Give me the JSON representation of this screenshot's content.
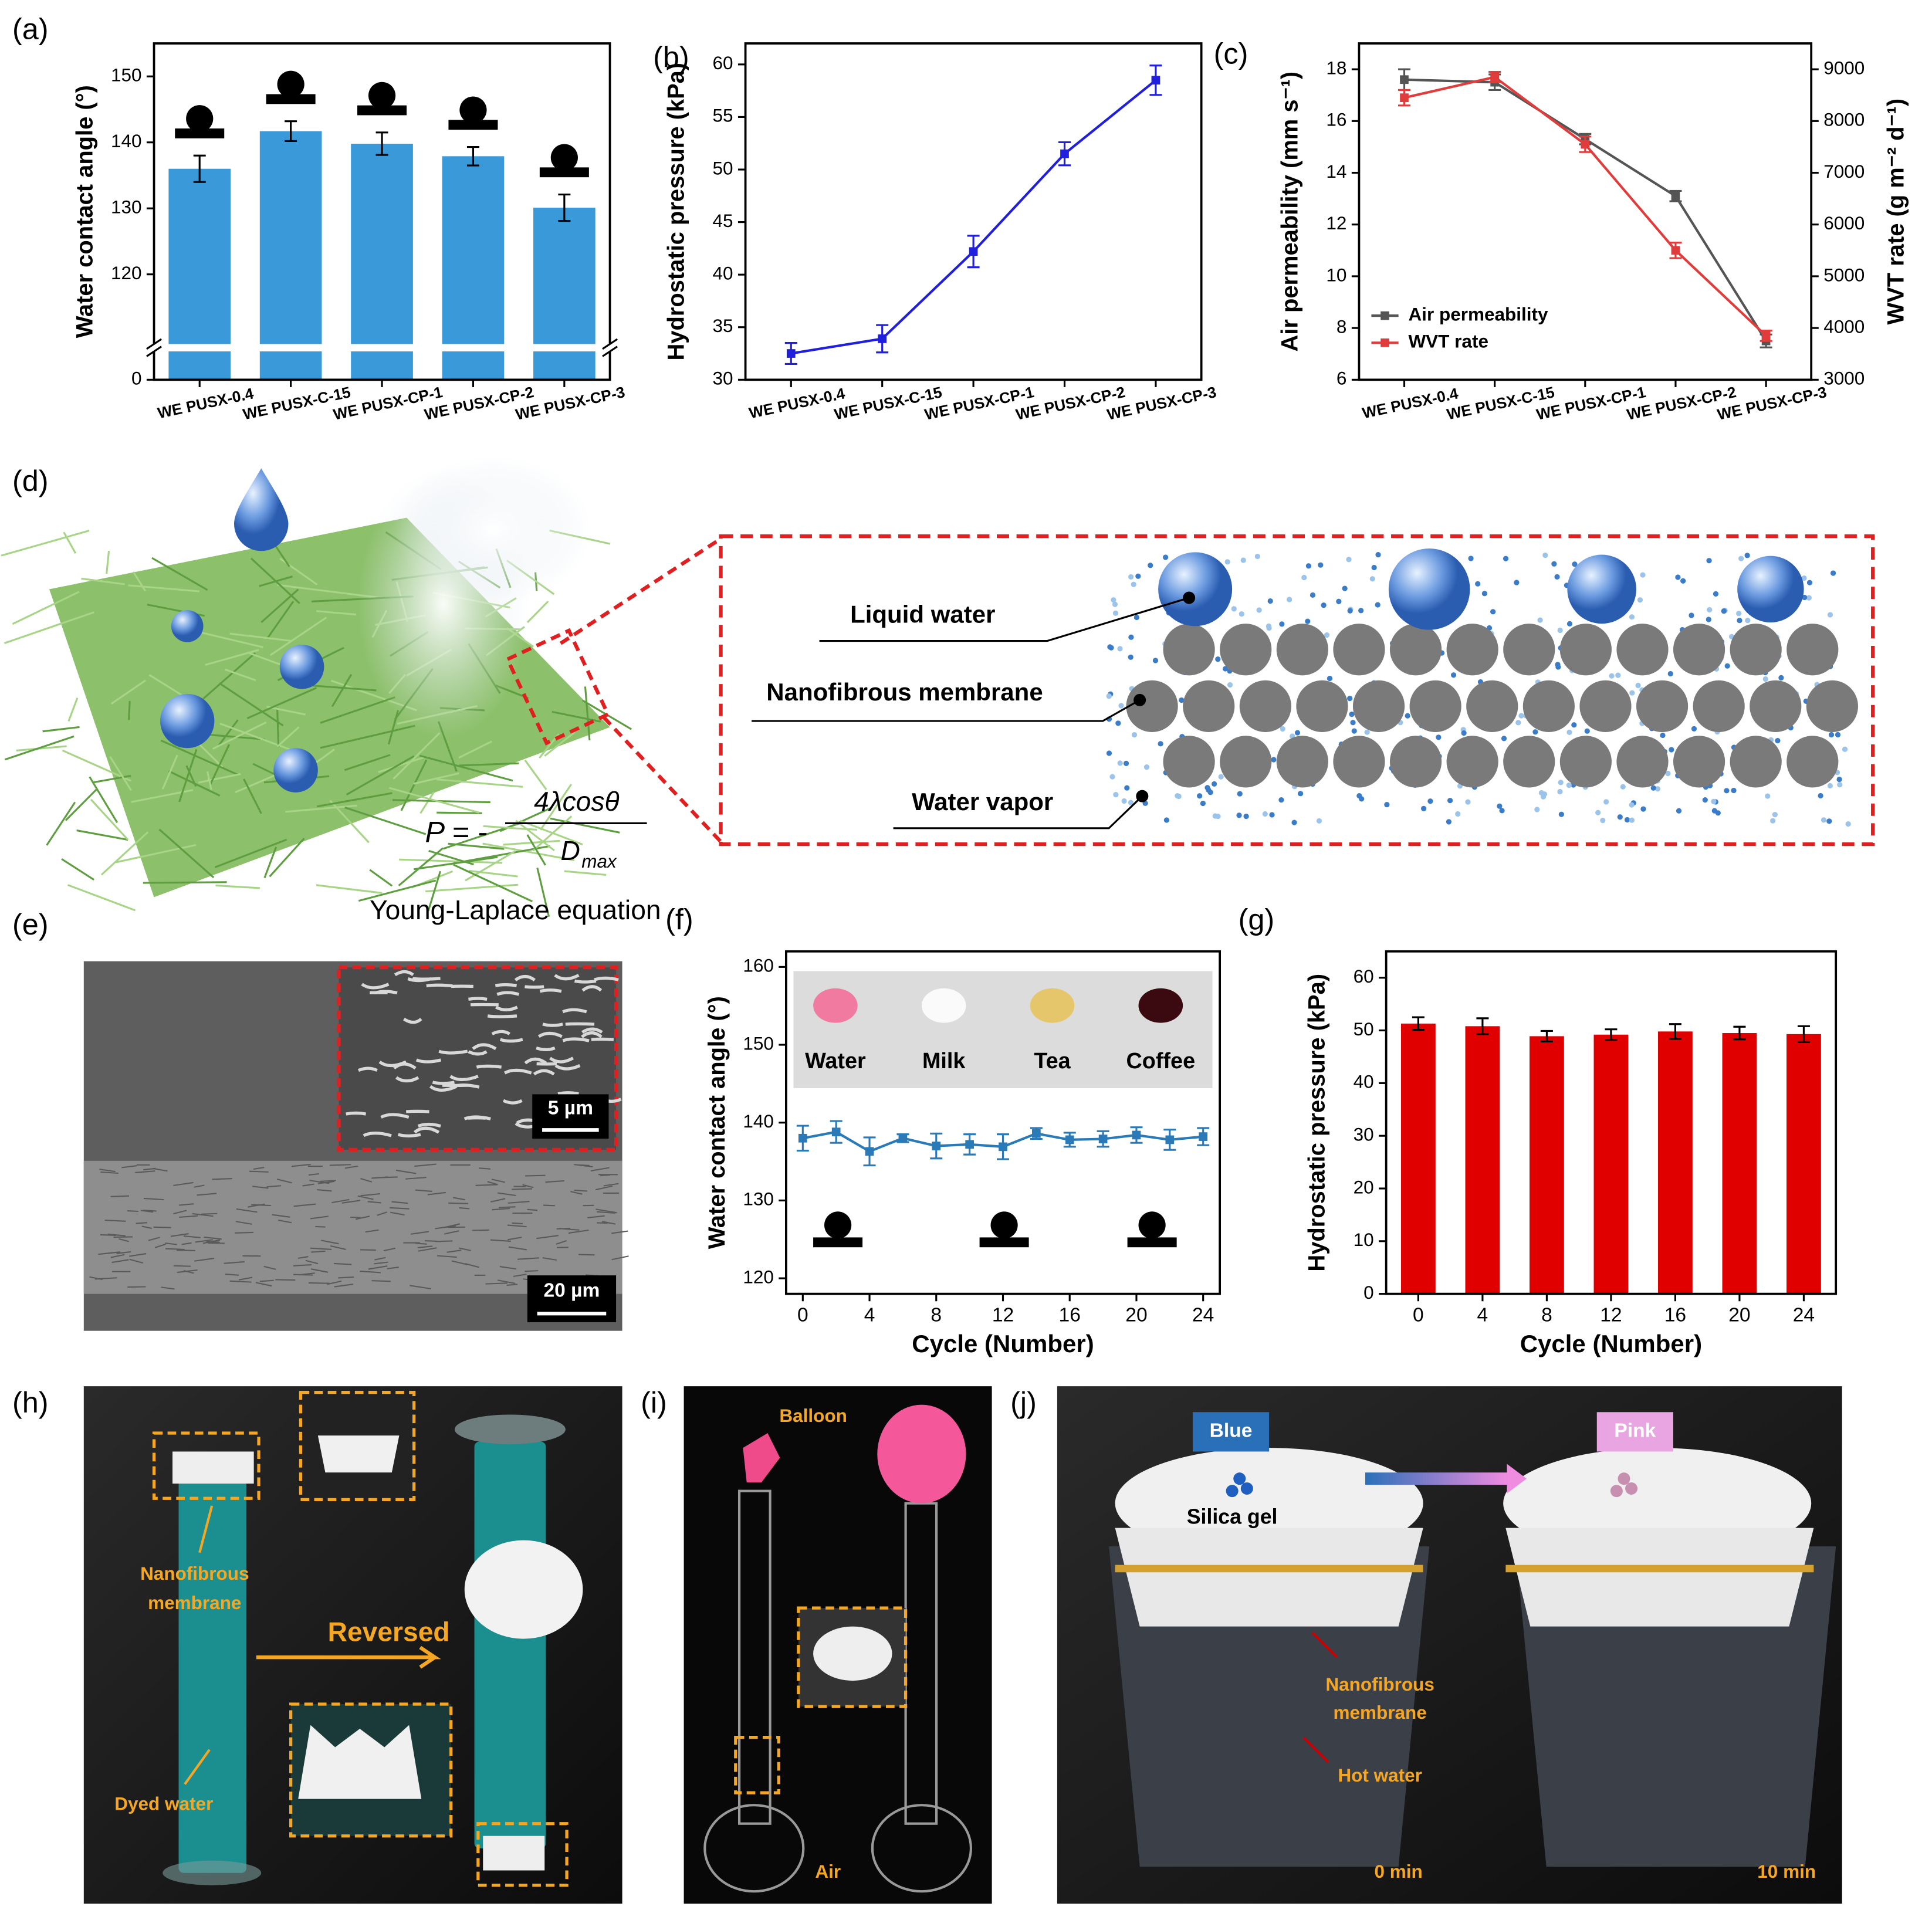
{
  "chart_data": [
    {
      "panel": "(a)",
      "type": "bar",
      "categories": [
        "WE PUSX-0.4",
        "WE PUSX-C-15",
        "WE PUSX-CP-1",
        "WE PUSX-CP-2",
        "WE PUSX-CP-3"
      ],
      "values": [
        136.0,
        141.7,
        139.8,
        137.9,
        130.1
      ],
      "errors": [
        2.0,
        1.5,
        1.7,
        1.4,
        2.0
      ],
      "color": "#3a9ad9",
      "ylabel": "Water contact angle (°)",
      "ylim": [
        0,
        155
      ],
      "ybreak": [
        10,
        110
      ],
      "yticks": [
        0,
        120,
        130,
        140,
        150
      ]
    },
    {
      "panel": "(b)",
      "type": "line",
      "categories": [
        "WE PUSX-0.4",
        "WE PUSX-C-15",
        "WE PUSX-CP-1",
        "WE PUSX-CP-2",
        "WE PUSX-CP-3"
      ],
      "values": [
        32.5,
        33.9,
        42.2,
        51.5,
        58.5
      ],
      "errors": [
        1.0,
        1.3,
        1.5,
        1.1,
        1.4
      ],
      "color": "#1f1fdd",
      "ylabel": "Hydrostatic pressure (kPa)",
      "ylim": [
        30,
        62
      ],
      "yticks": [
        30,
        35,
        40,
        45,
        50,
        55,
        60
      ]
    },
    {
      "panel": "(c)",
      "type": "line",
      "categories": [
        "WE PUSX-0.4",
        "WE PUSX-C-15",
        "WE PUSX-CP-1",
        "WE PUSX-CP-2",
        "WE PUSX-CP-3"
      ],
      "series": [
        {
          "name": "Air permeability",
          "color": "#555555",
          "values": [
            17.6,
            17.5,
            15.3,
            13.1,
            7.5
          ],
          "errors": [
            0.4,
            0.3,
            0.2,
            0.2,
            0.25
          ]
        },
        {
          "name": "WVT rate",
          "color": "#e03c3c",
          "axis": "y2",
          "values": [
            8450,
            8850,
            7550,
            5500,
            3850
          ],
          "errors": [
            150,
            100,
            150,
            150,
            100
          ]
        }
      ],
      "ylabel": "Air permeability (mm s⁻¹)",
      "y2label": "WVT rate (g m⁻² d⁻¹)",
      "ylim": [
        6,
        19
      ],
      "yticks": [
        6,
        8,
        10,
        12,
        14,
        16,
        18
      ],
      "y2lim": [
        3000,
        9500
      ],
      "y2ticks": [
        3000,
        4000,
        5000,
        6000,
        7000,
        8000,
        9000
      ],
      "legend": "lower left"
    },
    {
      "panel": "(f)",
      "type": "line",
      "x": [
        0,
        2,
        4,
        6,
        8,
        10,
        12,
        14,
        16,
        18,
        20,
        22,
        24
      ],
      "values": [
        138.0,
        138.8,
        136.3,
        138.0,
        137.0,
        137.2,
        136.9,
        138.6,
        137.8,
        137.9,
        138.4,
        137.8,
        138.2
      ],
      "errors": [
        1.6,
        1.4,
        1.8,
        0.5,
        1.6,
        1.3,
        1.6,
        0.7,
        0.9,
        1.0,
        1.0,
        1.3,
        1.1
      ],
      "color": "#2a7ab8",
      "ylabel": "Water contact angle (°)",
      "xlabel": "Cycle (Number)",
      "ylim": [
        118,
        162
      ],
      "yticks": [
        120,
        130,
        140,
        150,
        160
      ],
      "xlim": [
        -1,
        25
      ],
      "xticks": [
        0,
        4,
        8,
        12,
        16,
        20,
        24
      ],
      "inset_labels": [
        "Water",
        "Milk",
        "Tea",
        "Coffee"
      ]
    },
    {
      "panel": "(g)",
      "type": "bar",
      "x": [
        0,
        4,
        8,
        12,
        16,
        20,
        24
      ],
      "values": [
        51.3,
        50.8,
        48.9,
        49.2,
        49.8,
        49.5,
        49.3
      ],
      "errors": [
        1.2,
        1.5,
        1.0,
        1.0,
        1.4,
        1.2,
        1.5
      ],
      "color": "#e00000",
      "ylabel": "Hydrostatic pressure (kPa)",
      "xlabel": "Cycle (Number)",
      "ylim": [
        0,
        65
      ],
      "yticks": [
        0,
        10,
        20,
        30,
        40,
        50,
        60
      ],
      "xlim": [
        -2,
        26
      ],
      "xticks": [
        0,
        4,
        8,
        12,
        16,
        20,
        24
      ]
    }
  ],
  "diagram": {
    "panel": "(d)",
    "labels": [
      "Liquid water",
      "Nanofibrous membrane",
      "Water vapor"
    ],
    "equation": {
      "lhs": "P = -",
      "numerator": "4λcosθ",
      "denominator": "D",
      "subscript": "max"
    },
    "caption": "Young-Laplace equation"
  },
  "sem": {
    "panel": "(e)",
    "inset_scale": "5 µm",
    "scale": "20 µm"
  },
  "photo_h": {
    "panel": "(h)",
    "membrane": [
      "Nanofibrous",
      "membrane"
    ],
    "arrow": "Reversed",
    "liquid": "Dyed water"
  },
  "photo_i": {
    "panel": "(i)",
    "balloon": "Balloon",
    "air": "Air"
  },
  "photo_j": {
    "panel": "(j)",
    "before": "Blue",
    "after": "Pink",
    "desiccant": "Silica gel",
    "membrane": [
      "Nanofibrous",
      "membrane"
    ],
    "liquid": "Hot water",
    "time_start": "0 min",
    "time_end": "10 min"
  }
}
